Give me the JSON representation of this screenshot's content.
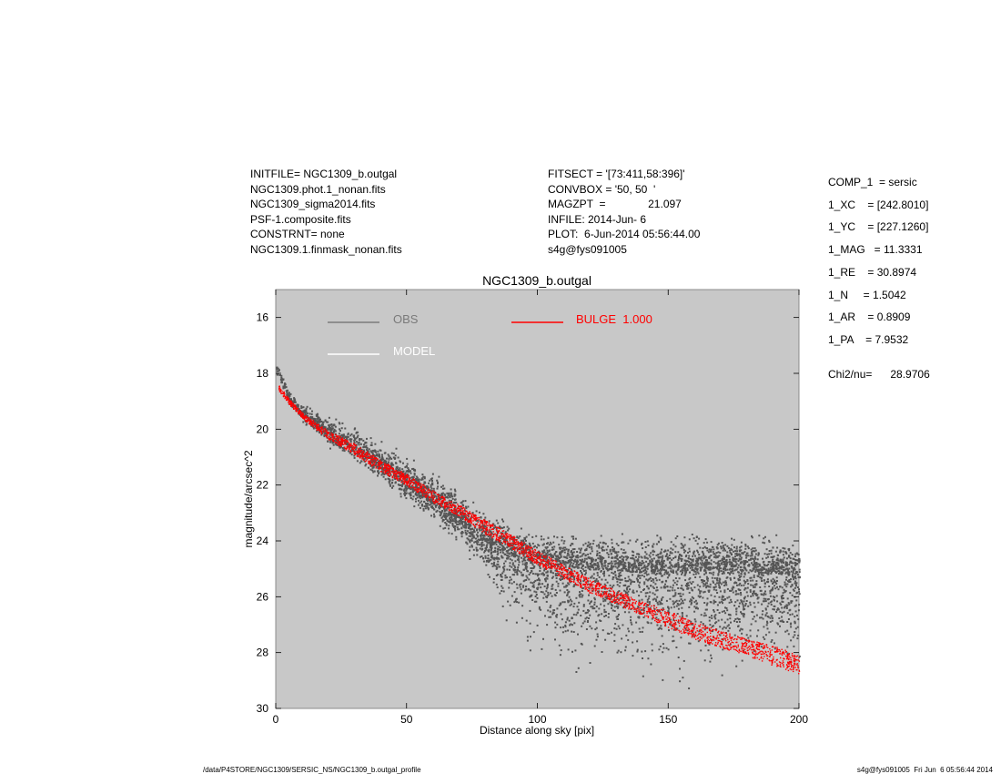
{
  "header_left": [
    "INITFILE= NGC1309_b.outgal",
    "NGC1309.phot.1_nonan.fits",
    "NGC1309_sigma2014.fits",
    "PSF-1.composite.fits",
    "CONSTRNT= none",
    "NGC1309.1.finmask_nonan.fits"
  ],
  "header_mid": [
    "FITSECT = '[73:411,58:396]'",
    "CONVBOX = '50, 50  '",
    "MAGZPT  =              21.097",
    "INFILE: 2014-Jun- 6",
    "PLOT:  6-Jun-2014 05:56:44.00",
    "s4g@fys091005"
  ],
  "params": [
    "COMP_1  = sersic",
    "1_XC    = [242.8010]",
    "1_YC    = [227.1260]",
    "1_MAG   = 11.3331",
    "1_RE    = 30.8974",
    "1_N     = 1.5042",
    "1_AR    = 0.8909",
    "1_PA    = 7.9532",
    "Chi2/nu=      28.9706"
  ],
  "footer_left": "/data/P4STORE/NGC1309/SERSIC_NS/NGC1309_b.outgal_profile",
  "footer_right": "s4g@fys091005  Fri Jun  6 05:56:44 2014",
  "colors": {
    "plot_bg": "#c8c8c8",
    "obs": "#555555",
    "obs_legend": "#7a7a7a",
    "model": "#ffffff",
    "bulge": "#ff0000"
  },
  "chart_data": {
    "type": "scatter",
    "title": "NGC1309_b.outgal",
    "xlabel": "Distance along sky [pix]",
    "ylabel": "magnitude/arcsec^2",
    "xlim": [
      0,
      200
    ],
    "ylim": [
      30,
      15
    ],
    "y_inverted": true,
    "xticks": [
      0,
      50,
      100,
      150,
      200
    ],
    "yticks": [
      16,
      18,
      20,
      22,
      24,
      26,
      28,
      30
    ],
    "legend": [
      {
        "label": "OBS",
        "color": "#7a7a7a"
      },
      {
        "label": "MODEL",
        "color": "#ffffff"
      },
      {
        "label": "BULGE  1.000",
        "color": "#ff0000"
      }
    ],
    "series": [
      {
        "name": "OBS",
        "color": "#555555",
        "x": [
          0,
          5,
          10,
          20,
          30,
          40,
          50,
          60,
          70,
          80,
          90,
          100,
          120,
          140,
          160,
          180,
          200
        ],
        "y": [
          17.8,
          18.9,
          19.4,
          20.1,
          20.6,
          21.2,
          21.8,
          22.5,
          23.2,
          24.0,
          24.5,
          24.8,
          25.0,
          25.1,
          25.1,
          25.1,
          25.2
        ],
        "y_spread_lower": [
          0.3,
          0.3,
          0.4,
          0.6,
          0.7,
          0.8,
          1.0,
          1.0,
          1.1,
          1.5,
          3.0,
          4.0,
          4.5,
          4.5,
          4.5,
          4.5,
          4.5
        ],
        "y_spread_upper": [
          0.3,
          0.3,
          0.5,
          0.8,
          0.9,
          1.0,
          1.1,
          1.2,
          1.3,
          1.4,
          1.4,
          1.5,
          1.6,
          1.7,
          1.8,
          1.8,
          1.8
        ]
      },
      {
        "name": "BULGE  1.000",
        "color": "#ff0000",
        "x": [
          1,
          5,
          10,
          20,
          30,
          40,
          50,
          60,
          70,
          80,
          90,
          100,
          110,
          120,
          130,
          140,
          150,
          160,
          170,
          180,
          190,
          200
        ],
        "y": [
          18.5,
          19.0,
          19.5,
          20.2,
          20.7,
          21.3,
          21.8,
          22.4,
          22.9,
          23.5,
          24.0,
          24.6,
          25.1,
          25.6,
          26.0,
          26.4,
          26.8,
          27.2,
          27.5,
          27.8,
          28.1,
          28.4
        ],
        "band_halfwidth": [
          0.1,
          0.1,
          0.1,
          0.15,
          0.2,
          0.2,
          0.2,
          0.2,
          0.2,
          0.25,
          0.25,
          0.25,
          0.25,
          0.25,
          0.25,
          0.25,
          0.3,
          0.3,
          0.3,
          0.3,
          0.35,
          0.35
        ]
      }
    ]
  }
}
